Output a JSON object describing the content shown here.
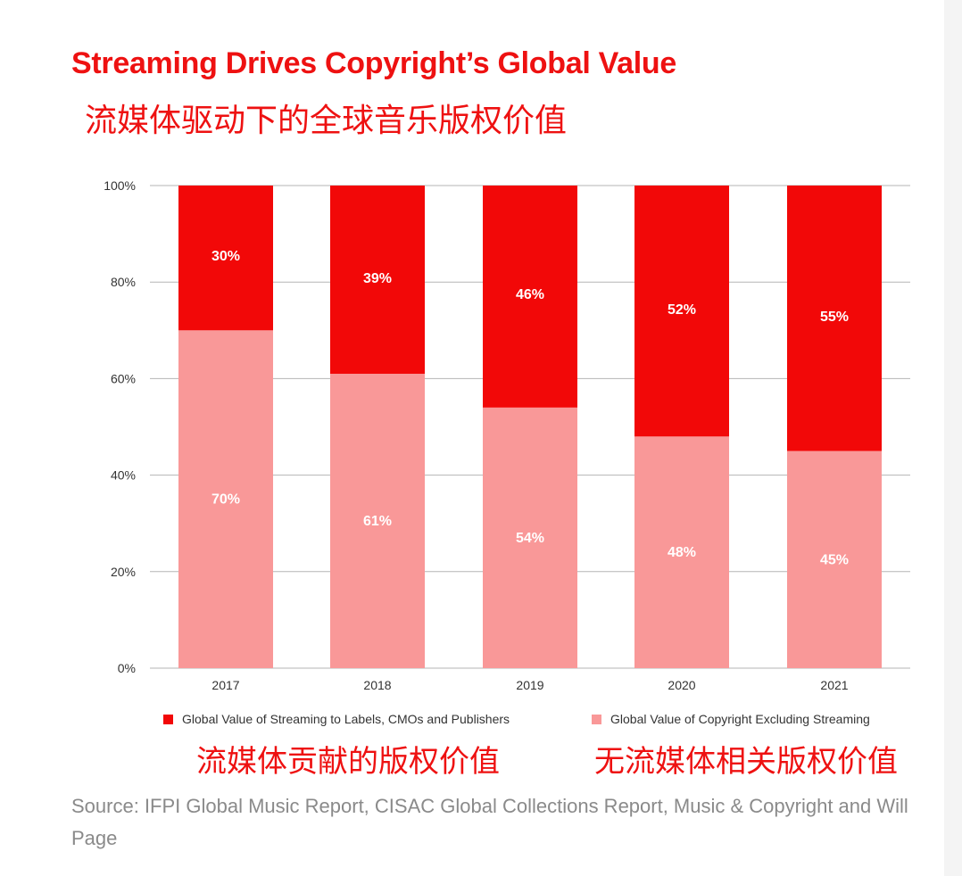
{
  "title": "Streaming Drives Copyright’s Global Value",
  "subtitle_cn": "流媒体驱动下的全球音乐版权价值",
  "legend": {
    "streaming": "Global Value of Streaming to Labels, CMOs and Publishers",
    "excluding": "Global Value of Copyright Excluding Streaming",
    "streaming_cn": "流媒体贡献的版权价值",
    "excluding_cn": "无流媒体相关版权价值"
  },
  "source": "Source: IFPI Global Music Report, CISAC Global Collections Report, Music & Copyright and Will Page",
  "colors": {
    "streaming": "#f20808",
    "excluding": "#f99898",
    "title": "#ee1111"
  },
  "chart_data": {
    "type": "bar",
    "stacked": true,
    "categories": [
      "2017",
      "2018",
      "2019",
      "2020",
      "2021"
    ],
    "series": [
      {
        "name": "Global Value of Copyright Excluding Streaming",
        "values": [
          70,
          61,
          54,
          48,
          45
        ],
        "labels": [
          "70%",
          "61%",
          "54%",
          "48%",
          "45%"
        ]
      },
      {
        "name": "Global Value of Streaming to Labels, CMOs and Publishers",
        "values": [
          30,
          39,
          46,
          52,
          55
        ],
        "labels": [
          "30%",
          "39%",
          "46%",
          "52%",
          "55%"
        ]
      }
    ],
    "yticks": [
      "0%",
      "20%",
      "40%",
      "60%",
      "80%",
      "100%"
    ],
    "ylim": [
      0,
      100
    ],
    "grid": true,
    "legend_position": "bottom"
  }
}
